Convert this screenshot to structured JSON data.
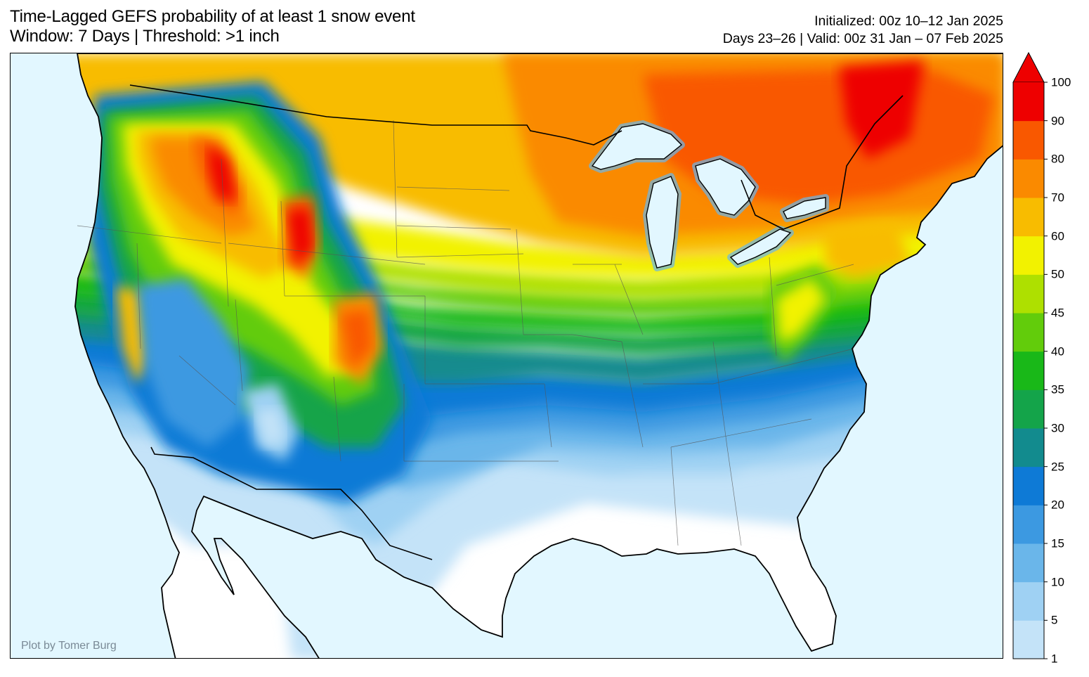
{
  "header": {
    "title_line1": "Time-Lagged GEFS probability of at least 1 snow event",
    "title_line2": "Window: 7 Days | Threshold: >1 inch",
    "init_line": "Initialized: 00z 10–12 Jan 2025",
    "valid_line": "Days 23–26 | Valid: 00z 31 Jan – 07 Feb 2025"
  },
  "credit": "Plot by Tomer Burg",
  "colorbar": {
    "levels": [
      1,
      5,
      10,
      15,
      20,
      25,
      30,
      35,
      40,
      45,
      50,
      60,
      70,
      80,
      90,
      100
    ],
    "labels": [
      "1",
      "5",
      "10",
      "15",
      "20",
      "25",
      "30",
      "35",
      "40",
      "45",
      "50",
      "60",
      "70",
      "80",
      "90",
      "100"
    ],
    "colors": [
      "#c4e3f8",
      "#9fd1f3",
      "#6ab6ea",
      "#3c99e1",
      "#0e7ad6",
      "#128b8e",
      "#14a44a",
      "#19b818",
      "#62cc0b",
      "#aee000",
      "#f2f200",
      "#f8bc00",
      "#fa8a00",
      "#f95800",
      "#ee0000"
    ],
    "extend_top_color": "#ee0000"
  },
  "map": {
    "ocean_color": "#e2f7ff",
    "land_color": "#ffffff"
  }
}
